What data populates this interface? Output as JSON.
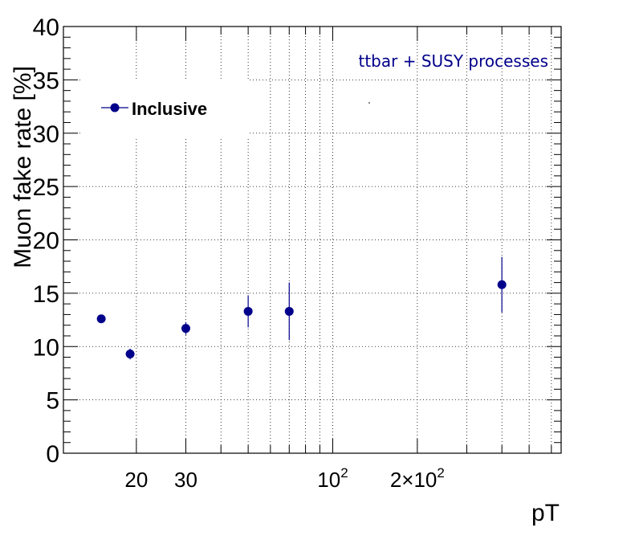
{
  "chart_data": {
    "type": "scatter",
    "title": "",
    "xlabel": "pT",
    "ylabel": "Muon fake rate [%]",
    "xscale": "log",
    "xlim": [
      11,
      650
    ],
    "ylim": [
      0,
      40
    ],
    "yticks": [
      0,
      5,
      10,
      15,
      20,
      25,
      30,
      35,
      40
    ],
    "xtick_labels": [
      {
        "value": 20,
        "text": "20"
      },
      {
        "value": 30,
        "text": "30"
      },
      {
        "value": 100,
        "base": "10",
        "exp": "2"
      },
      {
        "value": 200,
        "base": "2×10",
        "exp": "2"
      }
    ],
    "grid": true,
    "legend": {
      "position": "top-left"
    },
    "annotation": "ttbar + SUSY processes",
    "color": "#00008b",
    "series": [
      {
        "name": "Inclusive",
        "points": [
          {
            "x": 15,
            "y": 12.6,
            "yerr_low": 0.3,
            "yerr_high": 0.3
          },
          {
            "x": 19,
            "y": 9.3,
            "yerr_low": 0.5,
            "yerr_high": 0.5
          },
          {
            "x": 30,
            "y": 11.7,
            "yerr_low": 0.6,
            "yerr_high": 0.6
          },
          {
            "x": 50,
            "y": 13.3,
            "yerr_low": 1.5,
            "yerr_high": 1.5
          },
          {
            "x": 70,
            "y": 13.3,
            "yerr_low": 2.7,
            "yerr_high": 2.7
          },
          {
            "x": 400,
            "y": 15.8,
            "yerr_low": 2.6,
            "yerr_high": 2.6
          }
        ]
      }
    ]
  }
}
